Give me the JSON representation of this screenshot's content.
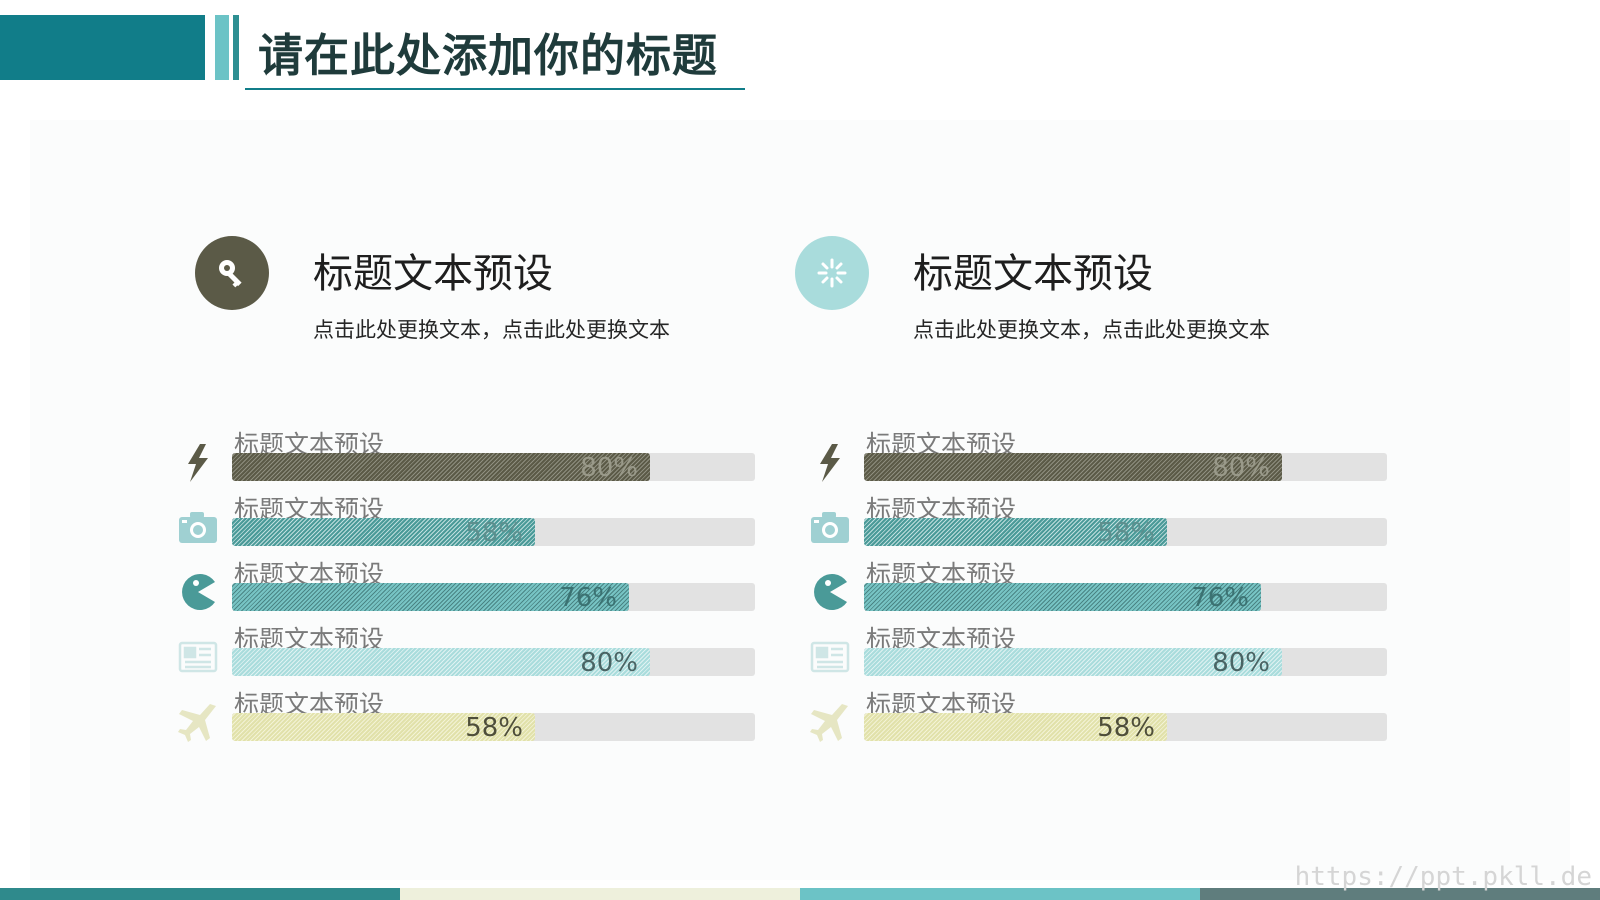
{
  "header": {
    "title": "请在此处添加你的标题"
  },
  "colors": {
    "teal_dark": "#117d89",
    "olive": "#5b5a47",
    "teal_mid": "#4a9a98",
    "teal_light": "#77c4c4",
    "mint": "#a9dcdc",
    "khaki": "#e1e1aa",
    "track": "#e2e2e2"
  },
  "sections": [
    {
      "title": "标题文本预设",
      "desc": "点击此处更换文本，点击此处更换文本",
      "icon": "key-icon"
    },
    {
      "title": "标题文本预设",
      "desc": "点击此处更换文本，点击此处更换文本",
      "icon": "loading-icon"
    }
  ],
  "chart_data": [
    {
      "type": "bar",
      "categories": [
        "标题文本预设",
        "标题文本预设",
        "标题文本预设",
        "标题文本预设",
        "标题文本预设"
      ],
      "values": [
        80,
        58,
        76,
        80,
        58
      ],
      "value_labels": [
        "80%",
        "58%",
        "76%",
        "80%",
        "58%"
      ],
      "icons": [
        "lightning-icon",
        "camera-icon",
        "pacman-icon",
        "newspaper-icon",
        "airplane-icon"
      ],
      "ylim": [
        0,
        100
      ]
    },
    {
      "type": "bar",
      "categories": [
        "标题文本预设",
        "标题文本预设",
        "标题文本预设",
        "标题文本预设",
        "标题文本预设"
      ],
      "values": [
        80,
        58,
        76,
        80,
        58
      ],
      "value_labels": [
        "80%",
        "58%",
        "76%",
        "80%",
        "58%"
      ],
      "icons": [
        "lightning-icon",
        "camera-icon",
        "pacman-icon",
        "newspaper-icon",
        "airplane-icon"
      ],
      "ylim": [
        0,
        100
      ]
    }
  ],
  "footer": {
    "watermark": "https://ppt.pkll.de"
  }
}
